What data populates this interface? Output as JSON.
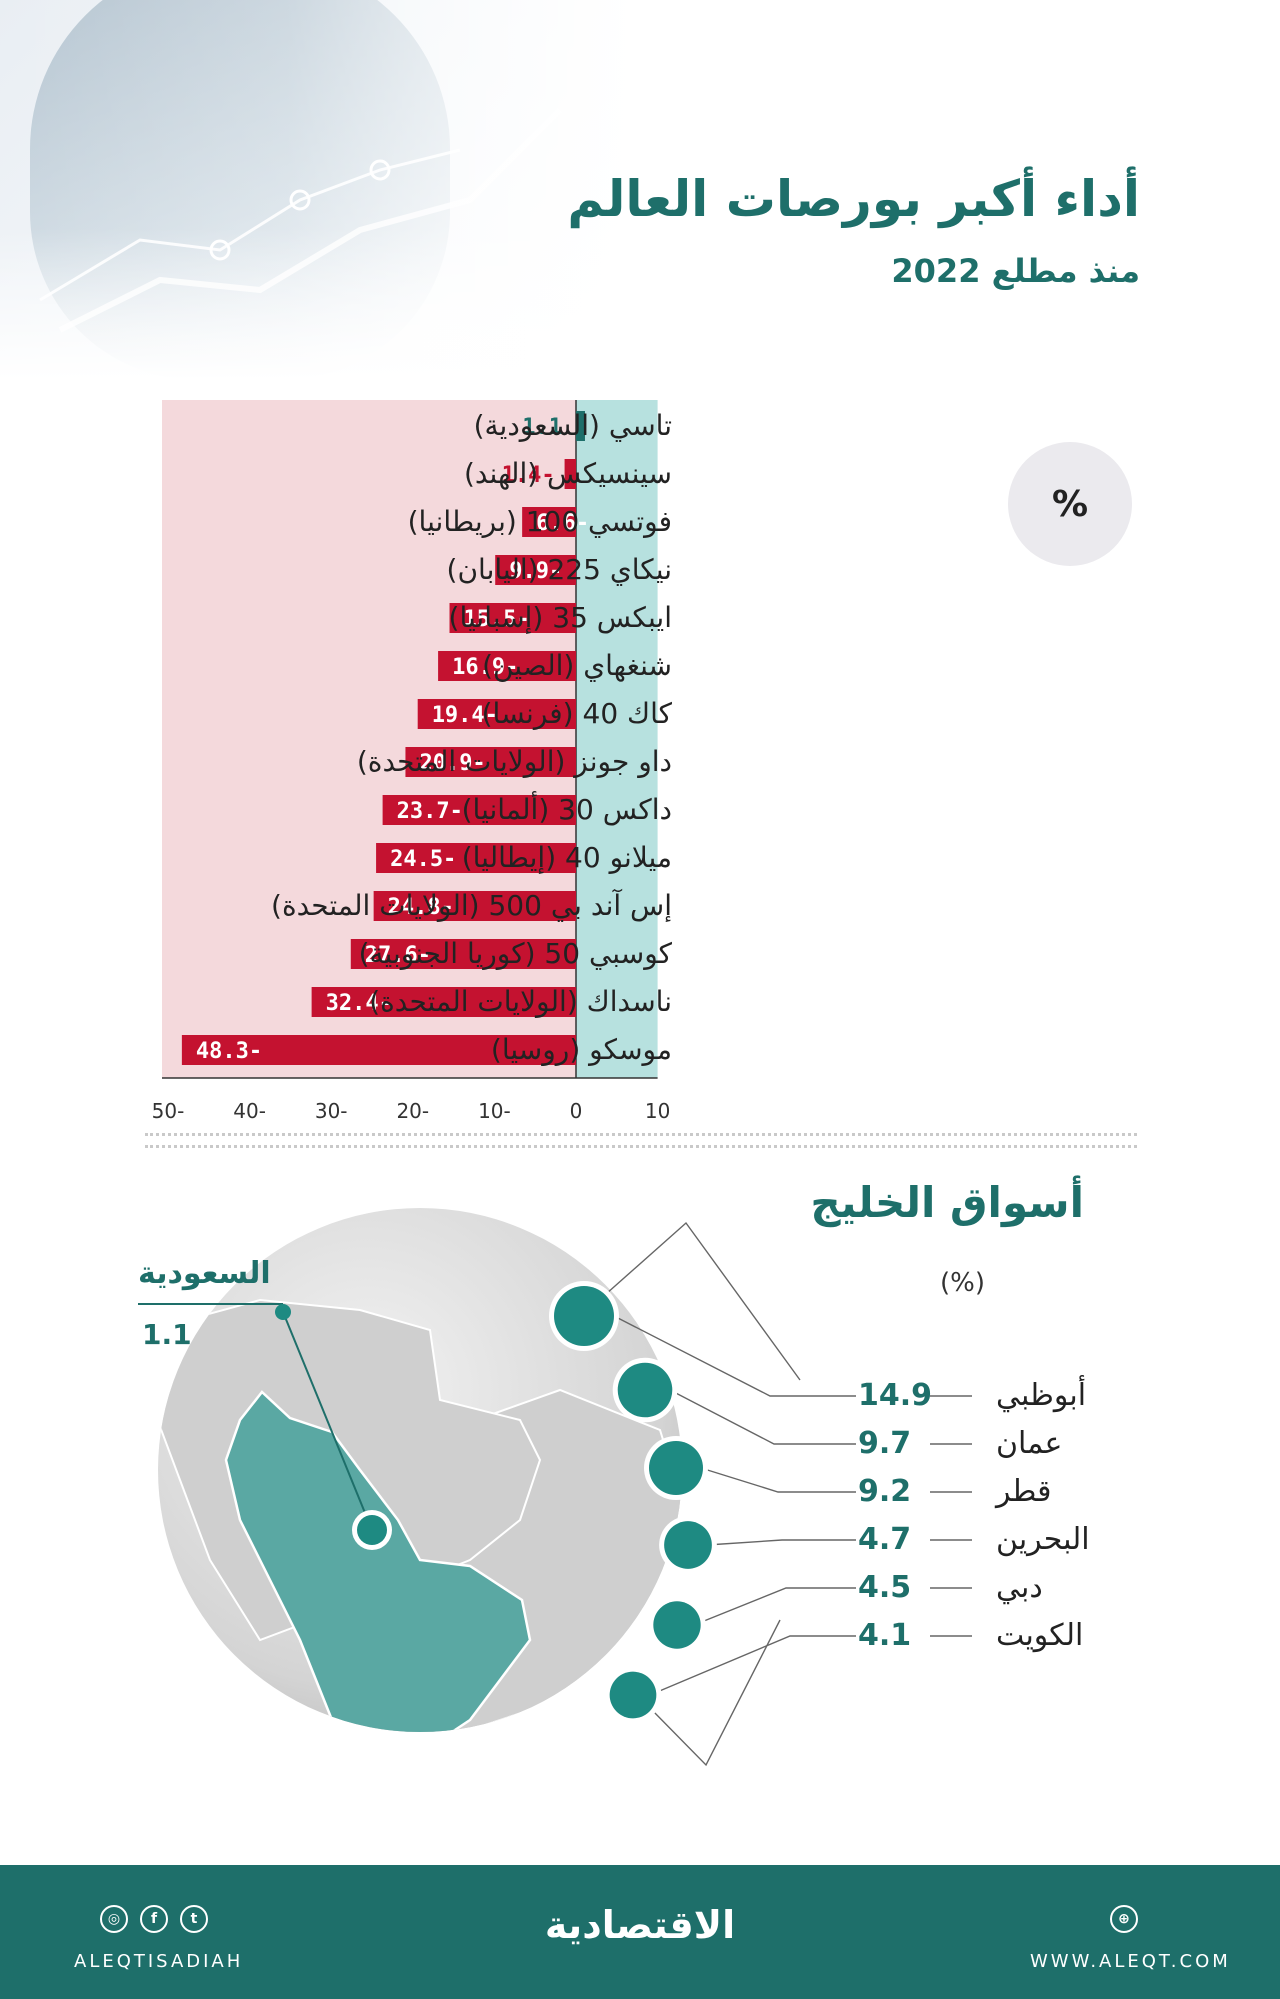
{
  "header": {
    "title": "أداء أكبر بورصات العالم",
    "subtitle": "منذ مطلع 2022"
  },
  "unit_badge": "%",
  "chart_data": [
    {
      "type": "bar",
      "orientation": "horizontal",
      "title": "أداء أكبر بورصات العالم",
      "subtitle": "منذ مطلع 2022",
      "unit": "%",
      "categories": [
        "تاسي (السعودية)",
        "سينسيكس (الهند)",
        "فوتسي 100 (بريطانيا)",
        "نيكاي 225 (اليابان)",
        "ايبكس 35 (إسبانيا)",
        "شنغهاي (الصين)",
        "كاك 40 (فرنسا)",
        "داو جونز (الولايات المتحدة)",
        "داكس 30 (ألمانيا)",
        "ميلانو 40 (إيطاليا)",
        "إس آند بي 500 (الولايات المتحدة)",
        "كوسبي  50 (كوريا الجنوبية)",
        "ناسداك (الولايات المتحدة)",
        "موسكو (روسيا)"
      ],
      "values": [
        1.1,
        -1.4,
        -6.6,
        -9.9,
        -15.5,
        -16.9,
        -19.4,
        -20.9,
        -23.7,
        -24.5,
        -24.8,
        -27.6,
        -32.4,
        -48.3
      ],
      "value_labels": [
        "1.1",
        "1.4-",
        "6.6-",
        "9.9-",
        "15.5-",
        "16.9-",
        "19.4-",
        "20.9-",
        "23.7-",
        "24.5-",
        "24.8-",
        "27.6-",
        "32.4-",
        "48.3-"
      ],
      "xlim": [
        -50,
        10
      ],
      "xticks": [
        -50,
        -40,
        -30,
        -20,
        -10,
        0,
        10
      ],
      "xtick_labels": [
        "50-",
        "40-",
        "30-",
        "20-",
        "10-",
        "0",
        "10"
      ],
      "colors": {
        "negative": "#c41230",
        "positive": "#1e6f6a",
        "neg_bg": "#f4d9dc",
        "pos_bg": "#b7e1df",
        "neg_label": "#c41230",
        "pos_label": "#1e6f6a"
      }
    },
    {
      "type": "scatter",
      "title": "أسواق الخليج",
      "unit": "(%)",
      "highlight": {
        "name": "السعودية",
        "value": 1.1,
        "value_label": "1.1"
      },
      "categories": [
        "أبوظبي",
        "عمان",
        "قطر",
        "البحرين",
        "دبي",
        "الكويت"
      ],
      "values": [
        14.9,
        9.7,
        9.2,
        4.7,
        4.5,
        4.1
      ],
      "value_labels": [
        "14.9",
        "9.7",
        "9.2",
        "4.7",
        "4.5",
        "4.1"
      ],
      "colors": {
        "marker": "#1e8a82",
        "map_land": "#5aa8a3",
        "globe": "#d9d9d9"
      }
    }
  ],
  "gulf": {
    "title": "أسواق الخليج",
    "unit": "(%)",
    "saudi_name": "السعودية",
    "saudi_value": "1.1",
    "items": [
      {
        "name": "أبوظبي",
        "value": "14.9"
      },
      {
        "name": "عمان",
        "value": "9.7"
      },
      {
        "name": "قطر",
        "value": "9.2"
      },
      {
        "name": "البحرين",
        "value": "4.7"
      },
      {
        "name": "دبي",
        "value": "4.5"
      },
      {
        "name": "الكويت",
        "value": "4.1"
      }
    ]
  },
  "footer": {
    "logo": "الاقتصادية",
    "handle": "ALEQTISADIAH",
    "website": "WWW.ALEQT.COM",
    "social_icons": [
      "instagram-icon",
      "facebook-icon",
      "twitter-icon"
    ],
    "web_icon": "globe-icon"
  }
}
